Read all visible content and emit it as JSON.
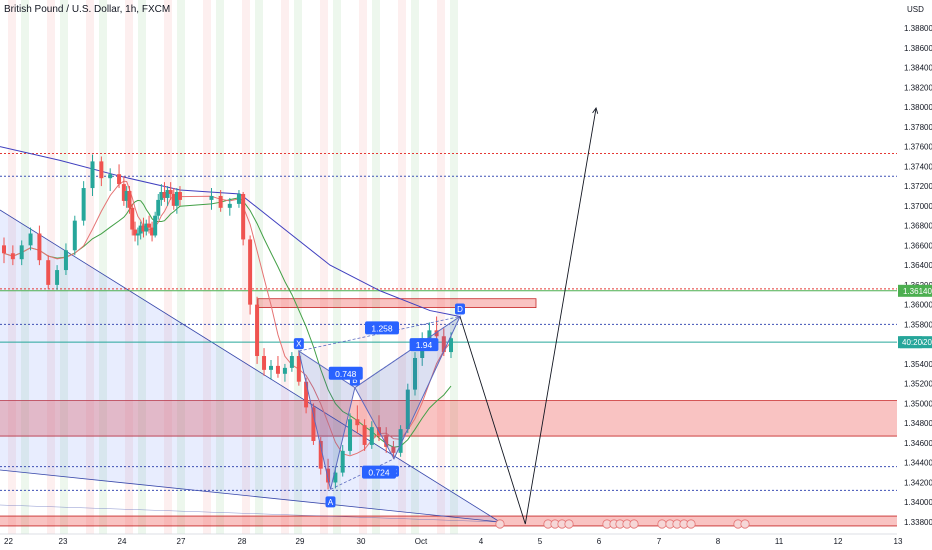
{
  "chart_data": {
    "type": "candlestick",
    "title": "British Pound / U.S. Dollar, 1h, FXCM",
    "currency": "USD",
    "y_range": [
      1.3376,
      1.391
    ],
    "y_ticks": [
      "1.38800",
      "1.38600",
      "1.38400",
      "1.38200",
      "1.38000",
      "1.37800",
      "1.37600",
      "1.37400",
      "1.37200",
      "1.37000",
      "1.36800",
      "1.36600",
      "1.36400",
      "1.36200",
      "1.36000",
      "1.35800",
      "1.35600",
      "1.35400",
      "1.35200",
      "1.35000",
      "1.34800",
      "1.34600",
      "1.34400",
      "1.34200",
      "1.34000",
      "1.33800"
    ],
    "x_ticks": [
      {
        "label": "22",
        "day": 22
      },
      {
        "label": "23",
        "day": 23
      },
      {
        "label": "24",
        "day": 24
      },
      {
        "label": "27",
        "day": 27
      },
      {
        "label": "28",
        "day": 28
      },
      {
        "label": "29",
        "day": 29
      },
      {
        "label": "30",
        "day": 30
      },
      {
        "label": "Oct",
        "day": 31
      },
      {
        "label": "4",
        "day": 32
      },
      {
        "label": "5",
        "day": 33
      },
      {
        "label": "6",
        "day": 34
      },
      {
        "label": "7",
        "day": 35
      },
      {
        "label": "8",
        "day": 36
      },
      {
        "label": "11",
        "day": 37
      },
      {
        "label": "12",
        "day": 38
      },
      {
        "label": "13",
        "day": 39
      }
    ],
    "price_badges": [
      {
        "label": "1.36140",
        "value": 1.3614,
        "color": "#4caf50"
      },
      {
        "label": "1.35620",
        "value": 1.3562,
        "color": "#26a69a"
      }
    ],
    "current_price_box": "40:20",
    "horizontal_lines": [
      {
        "value": 1.3753,
        "color": "#e53935",
        "style": "dotted"
      },
      {
        "value": 1.373,
        "color": "#3f51b5",
        "style": "dotted"
      },
      {
        "value": 1.3616,
        "color": "#e53935",
        "style": "dotted"
      },
      {
        "value": 1.3614,
        "color": "#4caf50",
        "style": "solid"
      },
      {
        "value": 1.358,
        "color": "#3f51b5",
        "style": "dotted"
      },
      {
        "value": 1.3562,
        "color": "#26a69a",
        "style": "solid"
      },
      {
        "value": 1.3436,
        "color": "#3f51b5",
        "style": "dotted"
      },
      {
        "value": 1.3412,
        "color": "#3f51b5",
        "style": "dotted"
      }
    ],
    "zones": [
      {
        "from": 1.3467,
        "to": 1.3503,
        "color": "#ef5350"
      },
      {
        "from": 1.3376,
        "to": 1.3386,
        "color": "#ef5350"
      }
    ],
    "harmonic_points": [
      {
        "label": "X",
        "day": 28.98,
        "value": 1.3553
      },
      {
        "label": "A",
        "day": 29.5,
        "value": 1.3413
      },
      {
        "label": "B",
        "day": 29.9,
        "value": 1.3516
      },
      {
        "label": "C",
        "day": 30.55,
        "value": 1.3444
      },
      {
        "label": "D",
        "day": 31.65,
        "value": 1.3588
      }
    ],
    "harmonic_ratios": [
      {
        "label": "1.258",
        "day": 30.35,
        "value": 1.3576
      },
      {
        "label": "0.748",
        "day": 29.75,
        "value": 1.353
      },
      {
        "label": "1.94",
        "day": 31.05,
        "value": 1.3559
      },
      {
        "label": "0.724",
        "day": 30.3,
        "value": 1.343
      }
    ],
    "projection": [
      {
        "day": 31.65,
        "value": 1.3588
      },
      {
        "day": 32.75,
        "value": 1.3378
      },
      {
        "day": 33.95,
        "value": 1.3799
      }
    ],
    "candles": [
      {
        "day": 22.0,
        "o": 1.366,
        "h": 1.3668,
        "l": 1.3642,
        "c": 1.3652
      },
      {
        "day": 22.15,
        "o": 1.3652,
        "h": 1.366,
        "l": 1.364,
        "c": 1.3646
      },
      {
        "day": 22.3,
        "o": 1.3646,
        "h": 1.3665,
        "l": 1.364,
        "c": 1.366
      },
      {
        "day": 22.45,
        "o": 1.366,
        "h": 1.3678,
        "l": 1.3655,
        "c": 1.3672
      },
      {
        "day": 22.6,
        "o": 1.3672,
        "h": 1.368,
        "l": 1.364,
        "c": 1.3645
      },
      {
        "day": 22.75,
        "o": 1.3645,
        "h": 1.365,
        "l": 1.3616,
        "c": 1.362
      },
      {
        "day": 22.9,
        "o": 1.362,
        "h": 1.364,
        "l": 1.3615,
        "c": 1.3635
      },
      {
        "day": 23.05,
        "o": 1.3635,
        "h": 1.3662,
        "l": 1.363,
        "c": 1.3655
      },
      {
        "day": 23.2,
        "o": 1.3655,
        "h": 1.369,
        "l": 1.365,
        "c": 1.3685
      },
      {
        "day": 23.35,
        "o": 1.3685,
        "h": 1.3725,
        "l": 1.368,
        "c": 1.3718
      },
      {
        "day": 23.5,
        "o": 1.3718,
        "h": 1.3752,
        "l": 1.371,
        "c": 1.3745
      },
      {
        "day": 23.65,
        "o": 1.3745,
        "h": 1.375,
        "l": 1.372,
        "c": 1.3728
      },
      {
        "day": 23.8,
        "o": 1.3728,
        "h": 1.3738,
        "l": 1.3715,
        "c": 1.3732
      },
      {
        "day": 23.95,
        "o": 1.3732,
        "h": 1.3742,
        "l": 1.3718,
        "c": 1.3722
      },
      {
        "day": 24.1,
        "o": 1.3722,
        "h": 1.373,
        "l": 1.37,
        "c": 1.3705
      },
      {
        "day": 24.25,
        "o": 1.3705,
        "h": 1.372,
        "l": 1.3698,
        "c": 1.3715
      },
      {
        "day": 24.4,
        "o": 1.3715,
        "h": 1.372,
        "l": 1.3692,
        "c": 1.3698
      },
      {
        "day": 24.55,
        "o": 1.3698,
        "h": 1.3702,
        "l": 1.367,
        "c": 1.3676
      },
      {
        "day": 24.7,
        "o": 1.3676,
        "h": 1.3684,
        "l": 1.3664,
        "c": 1.367
      },
      {
        "day": 24.85,
        "o": 1.367,
        "h": 1.3678,
        "l": 1.366,
        "c": 1.3672
      },
      {
        "day": 25.0,
        "o": 1.3672,
        "h": 1.3684,
        "l": 1.3666,
        "c": 1.368
      },
      {
        "day": 25.15,
        "o": 1.368,
        "h": 1.3688,
        "l": 1.3668,
        "c": 1.3674
      },
      {
        "day": 25.3,
        "o": 1.3674,
        "h": 1.3686,
        "l": 1.367,
        "c": 1.3682
      },
      {
        "day": 25.45,
        "o": 1.3682,
        "h": 1.369,
        "l": 1.3672,
        "c": 1.3678
      },
      {
        "day": 25.6,
        "o": 1.3678,
        "h": 1.3684,
        "l": 1.3664,
        "c": 1.367
      },
      {
        "day": 25.75,
        "o": 1.367,
        "h": 1.3694,
        "l": 1.3668,
        "c": 1.369
      },
      {
        "day": 25.9,
        "o": 1.369,
        "h": 1.3712,
        "l": 1.3686,
        "c": 1.3706
      },
      {
        "day": 26.05,
        "o": 1.3706,
        "h": 1.3722,
        "l": 1.37,
        "c": 1.3714
      },
      {
        "day": 26.2,
        "o": 1.3714,
        "h": 1.3724,
        "l": 1.3704,
        "c": 1.3708
      },
      {
        "day": 26.35,
        "o": 1.3708,
        "h": 1.372,
        "l": 1.37,
        "c": 1.3716
      },
      {
        "day": 26.5,
        "o": 1.3716,
        "h": 1.3724,
        "l": 1.3706,
        "c": 1.3712
      },
      {
        "day": 26.65,
        "o": 1.3712,
        "h": 1.3718,
        "l": 1.3696,
        "c": 1.37
      },
      {
        "day": 26.8,
        "o": 1.37,
        "h": 1.3718,
        "l": 1.3692,
        "c": 1.3714
      },
      {
        "day": 26.95,
        "o": 1.3714,
        "h": 1.372,
        "l": 1.37,
        "c": 1.3706
      },
      {
        "day": 27.5,
        "o": 1.3706,
        "h": 1.3718,
        "l": 1.3696,
        "c": 1.371
      },
      {
        "day": 27.65,
        "o": 1.371,
        "h": 1.3716,
        "l": 1.3694,
        "c": 1.3698
      },
      {
        "day": 27.8,
        "o": 1.3698,
        "h": 1.3708,
        "l": 1.369,
        "c": 1.3702
      },
      {
        "day": 27.95,
        "o": 1.3702,
        "h": 1.3716,
        "l": 1.3698,
        "c": 1.3712
      },
      {
        "day": 28.02,
        "o": 1.3712,
        "h": 1.3714,
        "l": 1.366,
        "c": 1.3666
      },
      {
        "day": 28.14,
        "o": 1.3666,
        "h": 1.367,
        "l": 1.359,
        "c": 1.36
      },
      {
        "day": 28.26,
        "o": 1.36,
        "h": 1.3608,
        "l": 1.354,
        "c": 1.3548
      },
      {
        "day": 28.38,
        "o": 1.3548,
        "h": 1.3556,
        "l": 1.3528,
        "c": 1.3534
      },
      {
        "day": 28.5,
        "o": 1.3534,
        "h": 1.3544,
        "l": 1.3524,
        "c": 1.3538
      },
      {
        "day": 28.62,
        "o": 1.3538,
        "h": 1.3548,
        "l": 1.3526,
        "c": 1.353
      },
      {
        "day": 28.74,
        "o": 1.353,
        "h": 1.354,
        "l": 1.3522,
        "c": 1.3536
      },
      {
        "day": 28.86,
        "o": 1.3536,
        "h": 1.3552,
        "l": 1.3532,
        "c": 1.3548
      },
      {
        "day": 28.98,
        "o": 1.3548,
        "h": 1.3553,
        "l": 1.3518,
        "c": 1.3522
      },
      {
        "day": 29.1,
        "o": 1.3522,
        "h": 1.3526,
        "l": 1.349,
        "c": 1.3496
      },
      {
        "day": 29.22,
        "o": 1.3496,
        "h": 1.35,
        "l": 1.3458,
        "c": 1.3462
      },
      {
        "day": 29.34,
        "o": 1.3462,
        "h": 1.3466,
        "l": 1.3428,
        "c": 1.3434
      },
      {
        "day": 29.46,
        "o": 1.3434,
        "h": 1.3444,
        "l": 1.3413,
        "c": 1.342
      },
      {
        "day": 29.58,
        "o": 1.342,
        "h": 1.3436,
        "l": 1.3414,
        "c": 1.343
      },
      {
        "day": 29.7,
        "o": 1.343,
        "h": 1.3458,
        "l": 1.3426,
        "c": 1.3452
      },
      {
        "day": 29.82,
        "o": 1.3452,
        "h": 1.349,
        "l": 1.3448,
        "c": 1.3484
      },
      {
        "day": 29.94,
        "o": 1.3484,
        "h": 1.3498,
        "l": 1.347,
        "c": 1.3478
      },
      {
        "day": 30.06,
        "o": 1.3478,
        "h": 1.3484,
        "l": 1.3452,
        "c": 1.3458
      },
      {
        "day": 30.18,
        "o": 1.3458,
        "h": 1.3482,
        "l": 1.3454,
        "c": 1.3476
      },
      {
        "day": 30.3,
        "o": 1.3476,
        "h": 1.3488,
        "l": 1.3462,
        "c": 1.3468
      },
      {
        "day": 30.42,
        "o": 1.3468,
        "h": 1.3476,
        "l": 1.345,
        "c": 1.3456
      },
      {
        "day": 30.54,
        "o": 1.3456,
        "h": 1.3462,
        "l": 1.3444,
        "c": 1.345
      },
      {
        "day": 30.66,
        "o": 1.345,
        "h": 1.3478,
        "l": 1.3446,
        "c": 1.3474
      },
      {
        "day": 30.78,
        "o": 1.3474,
        "h": 1.352,
        "l": 1.347,
        "c": 1.3514
      },
      {
        "day": 30.9,
        "o": 1.3514,
        "h": 1.3552,
        "l": 1.3508,
        "c": 1.3546
      },
      {
        "day": 31.02,
        "o": 1.3546,
        "h": 1.3572,
        "l": 1.3538,
        "c": 1.3566
      },
      {
        "day": 31.14,
        "o": 1.3566,
        "h": 1.3582,
        "l": 1.3556,
        "c": 1.3574
      },
      {
        "day": 31.26,
        "o": 1.3574,
        "h": 1.3588,
        "l": 1.3562,
        "c": 1.3568
      },
      {
        "day": 31.38,
        "o": 1.3568,
        "h": 1.3576,
        "l": 1.3548,
        "c": 1.3552
      },
      {
        "day": 31.5,
        "o": 1.3552,
        "h": 1.3572,
        "l": 1.3546,
        "c": 1.3566
      }
    ]
  }
}
